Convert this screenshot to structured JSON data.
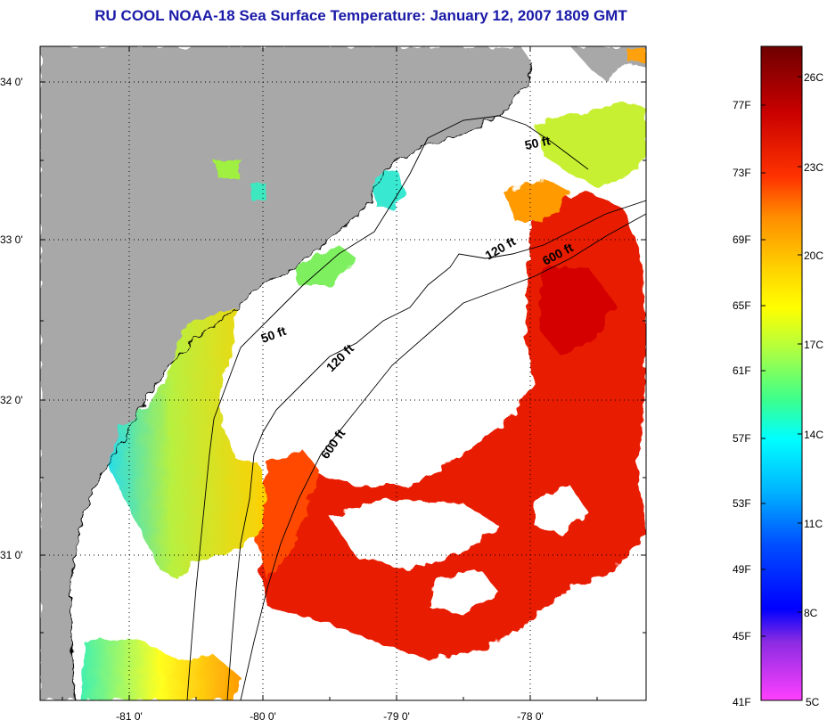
{
  "title": "RU COOL  NOAA-18  Sea Surface Temperature:  January 12, 2007 1809 GMT",
  "map": {
    "lat_labels": [
      "34 0'",
      "33 0'",
      "32 0'",
      "31 0'"
    ],
    "lon_labels": [
      "-81 0'",
      "-80 0'",
      "-79 0'",
      "-78 0'"
    ],
    "depth_contours": [
      {
        "label": "50 ft"
      },
      {
        "label": "50 ft"
      },
      {
        "label": "120 ft"
      },
      {
        "label": "120 ft"
      },
      {
        "label": "600 ft"
      },
      {
        "label": "600 ft"
      }
    ],
    "colors": {
      "land": "#a8a8a8",
      "ocean_nodata": "#ffffff"
    }
  },
  "colorbar": {
    "fahrenheit_labels": [
      "77F",
      "73F",
      "69F",
      "65F",
      "61F",
      "57F",
      "53F",
      "49F",
      "45F",
      "41F"
    ],
    "celsius_labels": [
      "26C",
      "23C",
      "20C",
      "17C",
      "14C",
      "11C",
      "8C",
      "5C"
    ],
    "gradient": [
      "#6e0000",
      "#c80000",
      "#ff3300",
      "#ff8c00",
      "#ffd200",
      "#ffff00",
      "#b4ff3c",
      "#3cff8c",
      "#00ffff",
      "#00b4ff",
      "#0050ff",
      "#0000ff",
      "#8a2be2",
      "#ff40ff"
    ]
  }
}
